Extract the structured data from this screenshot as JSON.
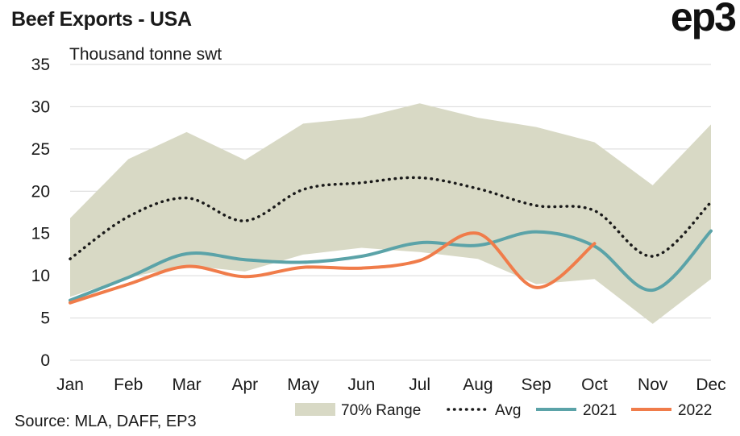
{
  "header": {
    "title": "Beef Exports - USA",
    "logo": "ep3"
  },
  "footer": {
    "source": "Source: MLA, DAFF, EP3"
  },
  "colors": {
    "range": "#d8d9c5",
    "avg": "#1a1a1a",
    "s2021": "#5ba3a8",
    "s2022": "#f07c4a",
    "grid": "#d9d9d9"
  },
  "chart_data": {
    "type": "line",
    "ylabel": "Thousand tonne swt",
    "ylim": [
      0,
      35
    ],
    "yticks": [
      "0",
      "5",
      "10",
      "15",
      "20",
      "25",
      "30",
      "35"
    ],
    "categories": [
      "Jan",
      "Feb",
      "Mar",
      "Apr",
      "May",
      "Jun",
      "Jul",
      "Aug",
      "Sep",
      "Oct",
      "Nov",
      "Dec"
    ],
    "range": {
      "name": "70% Range",
      "upper": [
        16.8,
        23.8,
        27.0,
        23.7,
        28.0,
        28.7,
        30.4,
        28.7,
        27.6,
        25.8,
        20.7,
        27.9
      ],
      "lower": [
        7.5,
        9.8,
        11.2,
        10.5,
        12.5,
        13.3,
        12.8,
        12.0,
        9.0,
        9.6,
        4.3,
        9.6
      ]
    },
    "series": [
      {
        "name": "Avg",
        "values": [
          12.0,
          17.0,
          19.2,
          16.5,
          20.2,
          21.0,
          21.6,
          20.3,
          18.3,
          17.7,
          12.3,
          18.7
        ]
      },
      {
        "name": "2021",
        "values": [
          7.1,
          9.8,
          12.6,
          11.9,
          11.6,
          12.3,
          13.9,
          13.6,
          15.2,
          13.5,
          8.3,
          15.3
        ]
      },
      {
        "name": "2022",
        "values": [
          6.8,
          9.0,
          11.1,
          9.9,
          11.0,
          10.9,
          11.8,
          15.0,
          8.6,
          13.8,
          null,
          null
        ]
      }
    ],
    "legend": "bottom-right"
  }
}
